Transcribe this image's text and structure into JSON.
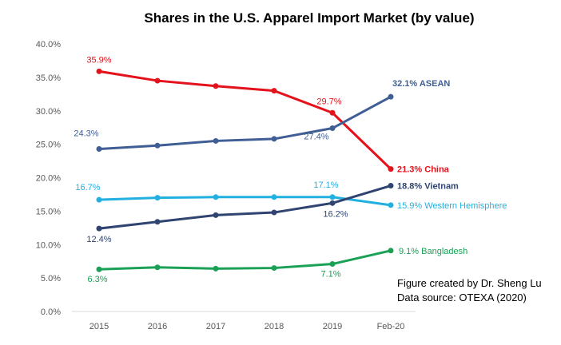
{
  "chart_data": {
    "type": "line",
    "title": "Shares in the U.S. Apparel Import Market (by value)",
    "categories": [
      "2015",
      "2016",
      "2017",
      "2018",
      "2019",
      "Feb-20"
    ],
    "y_ticks": [
      "0.0%",
      "5.0%",
      "10.0%",
      "15.0%",
      "20.0%",
      "25.0%",
      "30.0%",
      "35.0%",
      "40.0%"
    ],
    "ylim": [
      0,
      40
    ],
    "grid": false,
    "legend": "none (series labelled at end points)",
    "series": [
      {
        "name": "China",
        "color": "#e3121b",
        "values": [
          35.9,
          34.5,
          33.7,
          33.0,
          29.7,
          21.3
        ],
        "labels": [
          {
            "index": 0,
            "text": "35.9%"
          },
          {
            "index": 4,
            "text": "29.7%"
          }
        ],
        "end_label": "21.3% China"
      },
      {
        "name": "ASEAN",
        "color": "#3f5e94",
        "values": [
          24.3,
          24.8,
          25.5,
          25.8,
          27.4,
          32.1
        ],
        "labels": [
          {
            "index": 0,
            "text": "24.3%"
          },
          {
            "index": 4,
            "text": "27.4%"
          }
        ],
        "end_label": "32.1% ASEAN"
      },
      {
        "name": "Western Hemisphere",
        "color": "#21b0e0",
        "values": [
          16.7,
          17.0,
          17.1,
          17.1,
          17.1,
          15.9
        ],
        "labels": [
          {
            "index": 0,
            "text": "16.7%"
          },
          {
            "index": 4,
            "text": "17.1%"
          }
        ],
        "end_label": "15.9% Western Hemisphere"
      },
      {
        "name": "Vietnam",
        "color": "#2f4470",
        "values": [
          12.4,
          13.4,
          14.4,
          14.8,
          16.2,
          18.8
        ],
        "labels": [
          {
            "index": 0,
            "text": "12.4%"
          },
          {
            "index": 4,
            "text": "16.2%"
          }
        ],
        "end_label": "18.8% Vietnam"
      },
      {
        "name": "Bangladesh",
        "color": "#1aa155",
        "values": [
          6.3,
          6.6,
          6.4,
          6.5,
          7.1,
          9.1
        ],
        "labels": [
          {
            "index": 0,
            "text": "6.3%"
          },
          {
            "index": 4,
            "text": "7.1%"
          }
        ],
        "end_label": "9.1% Bangladesh"
      }
    ]
  },
  "annotation": {
    "line1": "Figure created by Dr. Sheng Lu",
    "line2": "Data source: OTEXA (2020)"
  }
}
